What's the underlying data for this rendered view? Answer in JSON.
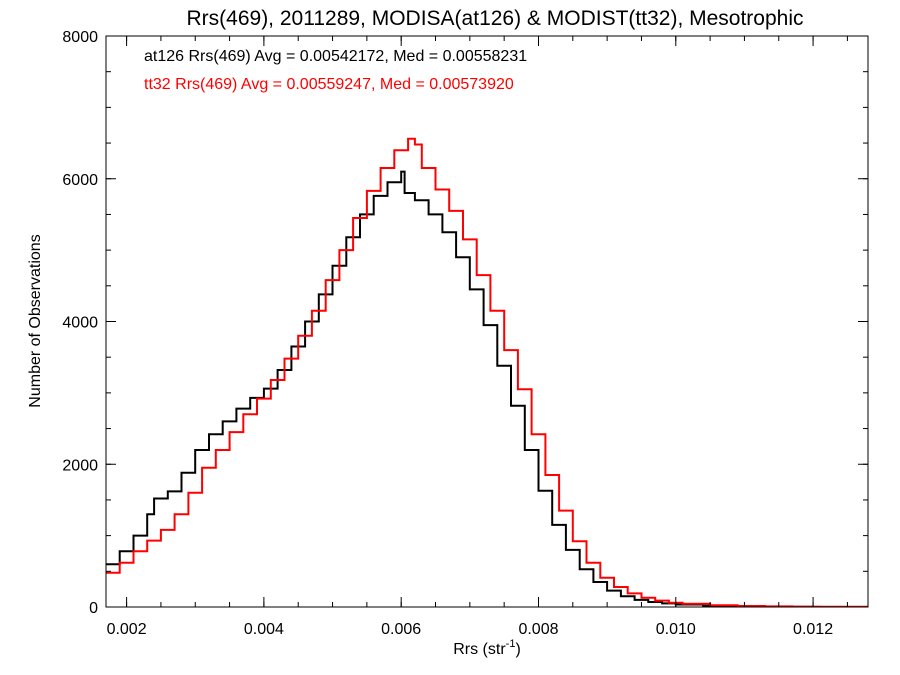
{
  "chart_data": {
    "type": "line",
    "title": "Rrs(469), 2011289, MODISA(at126) & MODIST(tt32), Mesotrophic",
    "xlabel": "Rrs (str",
    "xlabel_sup": "-1",
    "xlabel_close": ")",
    "ylabel": "Number of Observations",
    "xlim": [
      0.0017,
      0.0128
    ],
    "ylim": [
      0,
      8000
    ],
    "xticks": [
      0.002,
      0.004,
      0.006,
      0.008,
      0.01,
      0.012
    ],
    "xtick_labels": [
      "0.002",
      "0.004",
      "0.006",
      "0.008",
      "0.010",
      "0.012"
    ],
    "xminor_step": 0.0005,
    "yticks": [
      0,
      2000,
      4000,
      6000,
      8000
    ],
    "ytick_labels": [
      "0",
      "2000",
      "4000",
      "6000",
      "8000"
    ],
    "yminor_step": 500,
    "grid": false,
    "legend_position": "top-left",
    "step": true,
    "series": [
      {
        "name": "at126",
        "legend_text": "at126 Rrs(469) Avg = 0.00542172, Med = 0.00558231",
        "color": "#000000",
        "points": [
          [
            0.0017,
            600
          ],
          [
            0.0019,
            780
          ],
          [
            0.0021,
            1000
          ],
          [
            0.0023,
            1300
          ],
          [
            0.0024,
            1520
          ],
          [
            0.0026,
            1620
          ],
          [
            0.0028,
            1880
          ],
          [
            0.003,
            2200
          ],
          [
            0.0032,
            2420
          ],
          [
            0.0034,
            2600
          ],
          [
            0.0036,
            2780
          ],
          [
            0.0038,
            2930
          ],
          [
            0.004,
            3060
          ],
          [
            0.0042,
            3320
          ],
          [
            0.0044,
            3650
          ],
          [
            0.0046,
            4000
          ],
          [
            0.0048,
            4380
          ],
          [
            0.005,
            4780
          ],
          [
            0.0052,
            5180
          ],
          [
            0.0054,
            5500
          ],
          [
            0.0056,
            5760
          ],
          [
            0.0058,
            5950
          ],
          [
            0.006,
            6100
          ],
          [
            0.00605,
            5800
          ],
          [
            0.0062,
            5700
          ],
          [
            0.0064,
            5500
          ],
          [
            0.0066,
            5250
          ],
          [
            0.0068,
            4900
          ],
          [
            0.007,
            4450
          ],
          [
            0.0072,
            3950
          ],
          [
            0.0074,
            3380
          ],
          [
            0.0076,
            2820
          ],
          [
            0.0078,
            2200
          ],
          [
            0.008,
            1630
          ],
          [
            0.0082,
            1150
          ],
          [
            0.0084,
            800
          ],
          [
            0.0086,
            530
          ],
          [
            0.0088,
            350
          ],
          [
            0.009,
            230
          ],
          [
            0.0092,
            150
          ],
          [
            0.0094,
            100
          ],
          [
            0.0096,
            70
          ],
          [
            0.0098,
            50
          ],
          [
            0.01,
            35
          ],
          [
            0.0104,
            20
          ],
          [
            0.0108,
            10
          ],
          [
            0.0112,
            6
          ],
          [
            0.0116,
            3
          ],
          [
            0.012,
            2
          ],
          [
            0.0124,
            1
          ],
          [
            0.0128,
            0
          ]
        ]
      },
      {
        "name": "tt32",
        "legend_text": "tt32 Rrs(469) Avg = 0.00559247, Med = 0.00573920",
        "color": "#ff0000",
        "points": [
          [
            0.0017,
            480
          ],
          [
            0.0019,
            620
          ],
          [
            0.0021,
            780
          ],
          [
            0.0023,
            930
          ],
          [
            0.0025,
            1080
          ],
          [
            0.0027,
            1300
          ],
          [
            0.0029,
            1600
          ],
          [
            0.0031,
            1950
          ],
          [
            0.0033,
            2200
          ],
          [
            0.0035,
            2450
          ],
          [
            0.0037,
            2700
          ],
          [
            0.0039,
            2920
          ],
          [
            0.0041,
            3180
          ],
          [
            0.0043,
            3480
          ],
          [
            0.0045,
            3800
          ],
          [
            0.0047,
            4150
          ],
          [
            0.0049,
            4580
          ],
          [
            0.0051,
            5000
          ],
          [
            0.0053,
            5450
          ],
          [
            0.0055,
            5830
          ],
          [
            0.0057,
            6150
          ],
          [
            0.0059,
            6400
          ],
          [
            0.0061,
            6560
          ],
          [
            0.0062,
            6480
          ],
          [
            0.0063,
            6150
          ],
          [
            0.0065,
            5850
          ],
          [
            0.0067,
            5550
          ],
          [
            0.0069,
            5150
          ],
          [
            0.0071,
            4650
          ],
          [
            0.0073,
            4150
          ],
          [
            0.0075,
            3600
          ],
          [
            0.0077,
            3050
          ],
          [
            0.0079,
            2420
          ],
          [
            0.0081,
            1850
          ],
          [
            0.0083,
            1350
          ],
          [
            0.0085,
            920
          ],
          [
            0.0087,
            620
          ],
          [
            0.0089,
            410
          ],
          [
            0.0091,
            280
          ],
          [
            0.0093,
            190
          ],
          [
            0.0095,
            130
          ],
          [
            0.0097,
            90
          ],
          [
            0.0099,
            60
          ],
          [
            0.0101,
            45
          ],
          [
            0.0105,
            25
          ],
          [
            0.0109,
            14
          ],
          [
            0.0113,
            8
          ],
          [
            0.0117,
            4
          ],
          [
            0.0121,
            2
          ],
          [
            0.0125,
            1
          ],
          [
            0.0128,
            0
          ]
        ]
      }
    ]
  }
}
